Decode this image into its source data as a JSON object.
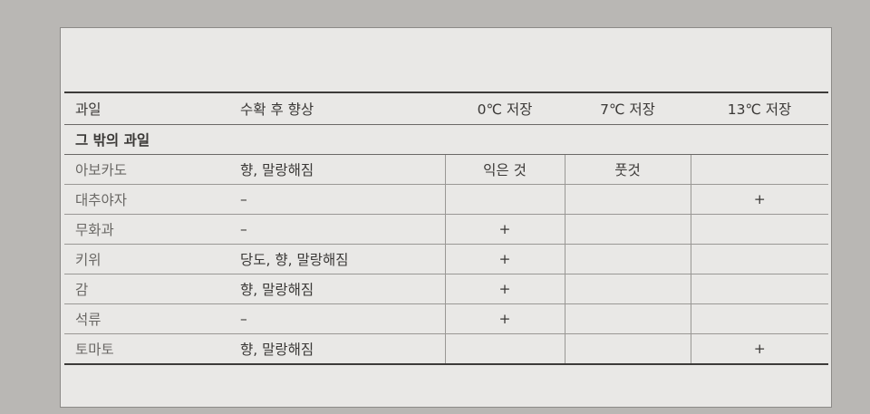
{
  "table": {
    "headers": [
      "과일",
      "수확 후 향상",
      "0℃ 저장",
      "7℃ 저장",
      "13℃ 저장"
    ],
    "section_label": "그 밖의 과일",
    "rows": [
      {
        "fruit": "아보카도",
        "improvement": "향, 말랑해짐",
        "c0": "익은 것",
        "c7": "풋것",
        "c13": ""
      },
      {
        "fruit": "대추야자",
        "improvement": "–",
        "c0": "",
        "c7": "",
        "c13": "+"
      },
      {
        "fruit": "무화과",
        "improvement": "–",
        "c0": "+",
        "c7": "",
        "c13": ""
      },
      {
        "fruit": "키위",
        "improvement": "당도, 향, 말랑해짐",
        "c0": "+",
        "c7": "",
        "c13": ""
      },
      {
        "fruit": "감",
        "improvement": "향, 말랑해짐",
        "c0": "+",
        "c7": "",
        "c13": ""
      },
      {
        "fruit": "석류",
        "improvement": "–",
        "c0": "+",
        "c7": "",
        "c13": ""
      },
      {
        "fruit": "토마토",
        "improvement": "향, 말랑해짐",
        "c0": "",
        "c7": "",
        "c13": "+"
      }
    ]
  }
}
